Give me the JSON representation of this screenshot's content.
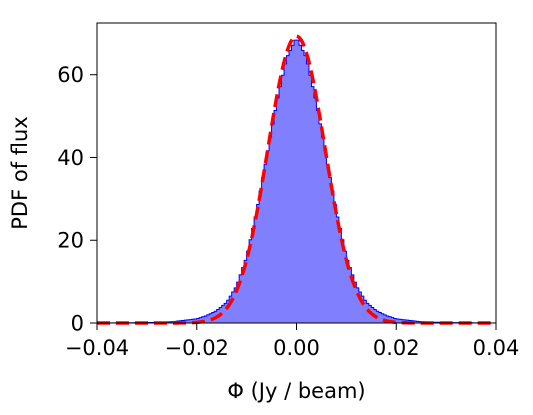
{
  "chart_data": {
    "type": "histogram",
    "title": "",
    "xlabel": "Φ (Jy / beam)",
    "ylabel": "PDF of flux",
    "xlim": [
      -0.04,
      0.04
    ],
    "ylim": [
      0,
      72.5
    ],
    "xticks": [
      -0.04,
      -0.02,
      0.0,
      0.02,
      0.04
    ],
    "xtick_labels": [
      "−0.04",
      "−0.02",
      "0.00",
      "0.02",
      "0.04"
    ],
    "yticks": [
      0,
      20,
      40,
      60
    ],
    "ytick_labels": [
      "0",
      "20",
      "40",
      "60"
    ],
    "grid": false,
    "legend": "none",
    "series": [
      {
        "kind": "histogram",
        "fill_color": "#8080ff",
        "edge_color": "#0000ff",
        "bin_range": [
          -0.04,
          0.04
        ],
        "bin_count": 160,
        "profile": {
          "x": [
            -0.04,
            -0.03,
            -0.025,
            -0.02,
            -0.018,
            -0.016,
            -0.014,
            -0.012,
            -0.01,
            -0.008,
            -0.006,
            -0.004,
            -0.002,
            0.0,
            0.002,
            0.004,
            0.006,
            0.008,
            0.01,
            0.012,
            0.014,
            0.016,
            0.018,
            0.02,
            0.025,
            0.03,
            0.04
          ],
          "y": [
            0.0,
            0.1,
            0.3,
            1.0,
            1.8,
            3.0,
            5.0,
            9.0,
            16.0,
            27.0,
            40.0,
            53.0,
            64.0,
            69.0,
            64.0,
            53.0,
            40.0,
            27.0,
            16.0,
            9.0,
            5.0,
            3.0,
            1.8,
            1.0,
            0.3,
            0.1,
            0.0
          ]
        }
      },
      {
        "kind": "gaussian-fit",
        "color": "#ff0000",
        "line_style": "dashed",
        "peak": 69.3,
        "mean": 0.0,
        "sigma": 0.00575
      }
    ]
  }
}
